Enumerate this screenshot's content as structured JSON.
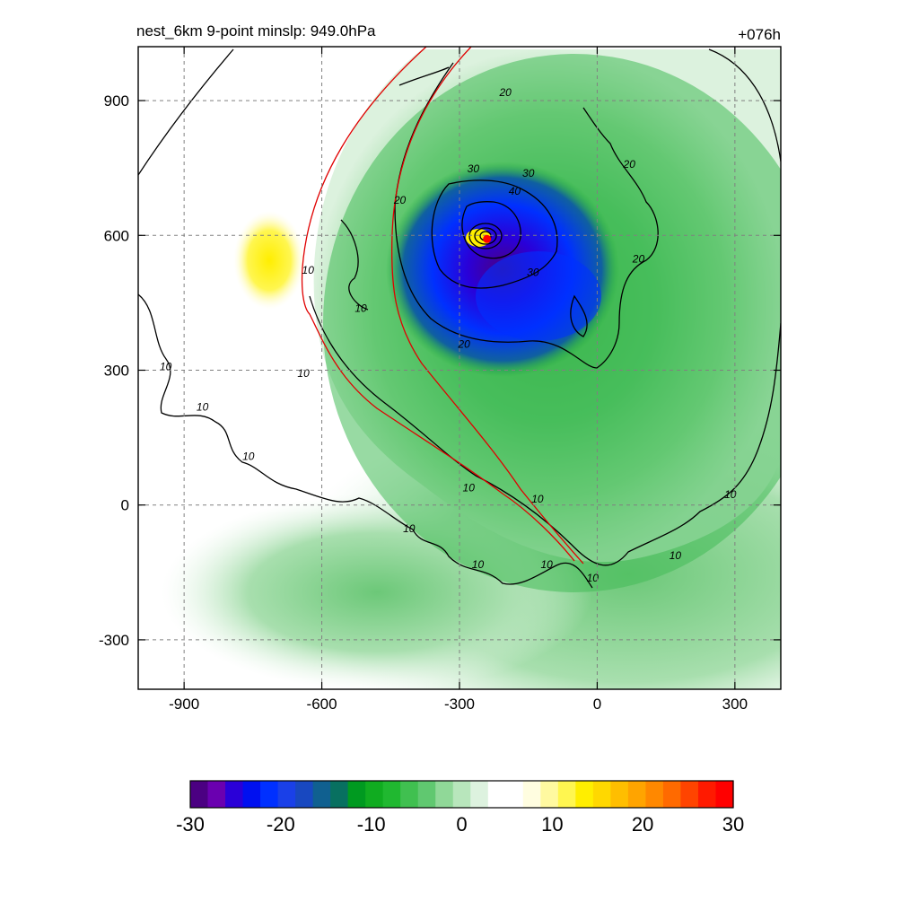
{
  "chart_data": {
    "type": "heatmap",
    "title_left": "nest_6km  9-point minslp: 949.0hPa",
    "title_right": "+076h",
    "x_ticks": [
      -900,
      -600,
      -300,
      0,
      300
    ],
    "y_ticks": [
      900,
      600,
      300,
      0,
      -300
    ],
    "xlim": [
      -1000,
      400
    ],
    "ylim": [
      -410,
      1020
    ],
    "grid": true,
    "grid_style": "dashed",
    "storm_center": [
      -240,
      592
    ],
    "colorbar": {
      "ticks": [
        -30,
        -20,
        -10,
        0,
        10,
        20,
        30
      ],
      "range": [
        -30,
        30
      ],
      "colors": [
        "#4b0082",
        "#6a00b0",
        "#2a00d8",
        "#0010f0",
        "#0030ff",
        "#1a40e8",
        "#1848c0",
        "#106090",
        "#087060",
        "#009a20",
        "#10ac20",
        "#20b830",
        "#40c050",
        "#60c870",
        "#90d898",
        "#b8e6bc",
        "#ddf2df",
        "#ffffff",
        "#ffffff",
        "#fffde0",
        "#fff9a0",
        "#fff650",
        "#ffee00",
        "#ffd800",
        "#ffbe00",
        "#ffa400",
        "#ff8800",
        "#ff6a00",
        "#ff4400",
        "#ff1a00",
        "#ff0000"
      ]
    },
    "contour_labels": [
      {
        "text": "20",
        "x": -200,
        "y": 910
      },
      {
        "text": "30",
        "x": -270,
        "y": 740
      },
      {
        "text": "30",
        "x": -150,
        "y": 730
      },
      {
        "text": "40",
        "x": -180,
        "y": 690
      },
      {
        "text": "20",
        "x": -430,
        "y": 670
      },
      {
        "text": "20",
        "x": 70,
        "y": 750
      },
      {
        "text": "20",
        "x": 90,
        "y": 540
      },
      {
        "text": "30",
        "x": -140,
        "y": 510
      },
      {
        "text": "20",
        "x": -290,
        "y": 350
      },
      {
        "text": "10",
        "x": -630,
        "y": 515
      },
      {
        "text": "10",
        "x": -515,
        "y": 430
      },
      {
        "text": "10",
        "x": -940,
        "y": 300
      },
      {
        "text": "10",
        "x": -860,
        "y": 210
      },
      {
        "text": "10",
        "x": -760,
        "y": 100
      },
      {
        "text": "10",
        "x": -640,
        "y": 285
      },
      {
        "text": "10",
        "x": -280,
        "y": 30
      },
      {
        "text": "10",
        "x": -130,
        "y": 5
      },
      {
        "text": "10",
        "x": -410,
        "y": -60
      },
      {
        "text": "10",
        "x": -260,
        "y": -140
      },
      {
        "text": "10",
        "x": -110,
        "y": -140
      },
      {
        "text": "10",
        "x": -10,
        "y": -170
      },
      {
        "text": "10",
        "x": 170,
        "y": -120
      },
      {
        "text": "10",
        "x": 290,
        "y": 15
      }
    ]
  }
}
